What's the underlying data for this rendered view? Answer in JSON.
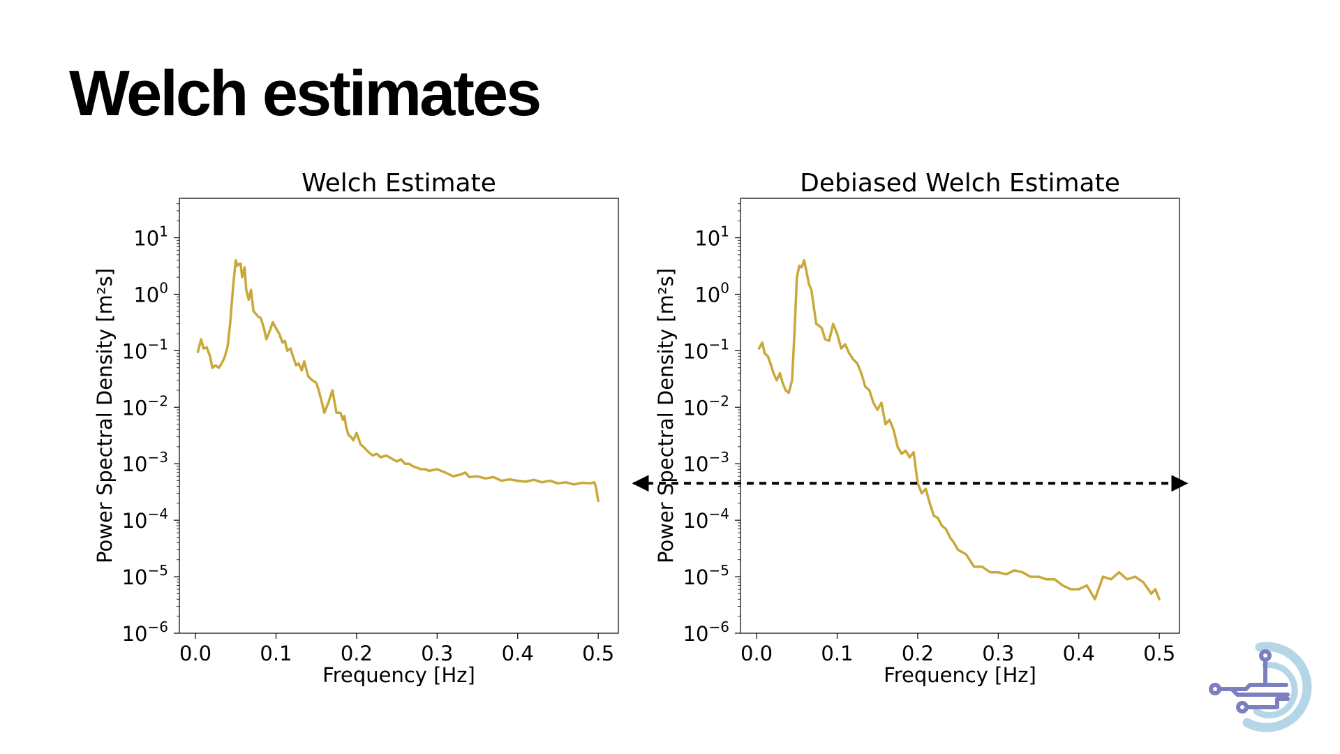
{
  "slide": {
    "title": "Welch estimates"
  },
  "colors": {
    "line": "#c9a83a",
    "threshold": "#000000",
    "axes": "#000000",
    "logo_blue": "#b4d6e6",
    "logo_purple": "#7b7fbf"
  },
  "logo": {
    "icon": "circuit-logo-icon"
  },
  "chart_data": [
    {
      "type": "line",
      "title": "Welch Estimate",
      "xlabel": "Frequency [Hz]",
      "ylabel": "Power Spectral Density [m²s]",
      "xlim": [
        -0.02,
        0.525
      ],
      "ylim": [
        1e-06,
        50
      ],
      "yscale": "log",
      "grid": false,
      "xticks": [
        "0.0",
        "0.1",
        "0.2",
        "0.3",
        "0.4",
        "0.5"
      ],
      "yticks": [
        {
          "base": "10",
          "exp": "1"
        },
        {
          "base": "10",
          "exp": "0"
        },
        {
          "base": "10",
          "exp": "−1"
        },
        {
          "base": "10",
          "exp": "−2"
        },
        {
          "base": "10",
          "exp": "−3"
        },
        {
          "base": "10",
          "exp": "−4"
        },
        {
          "base": "10",
          "exp": "−5"
        },
        {
          "base": "10",
          "exp": "−6"
        }
      ],
      "series": [
        {
          "x": [
            0.003,
            0.007,
            0.01,
            0.014,
            0.018,
            0.021,
            0.025,
            0.029,
            0.032,
            0.036,
            0.04,
            0.043,
            0.047,
            0.05,
            0.052,
            0.054,
            0.056,
            0.058,
            0.061,
            0.063,
            0.066,
            0.069,
            0.072,
            0.075,
            0.078,
            0.081,
            0.085,
            0.088,
            0.092,
            0.096,
            0.1,
            0.104,
            0.108,
            0.111,
            0.114,
            0.118,
            0.121,
            0.125,
            0.128,
            0.132,
            0.135,
            0.14,
            0.145,
            0.15,
            0.153,
            0.157,
            0.16,
            0.165,
            0.17,
            0.175,
            0.18,
            0.183,
            0.185,
            0.187,
            0.19,
            0.193,
            0.196,
            0.2,
            0.205,
            0.21,
            0.215,
            0.22,
            0.225,
            0.23,
            0.237,
            0.245,
            0.25,
            0.255,
            0.26,
            0.265,
            0.27,
            0.275,
            0.28,
            0.285,
            0.29,
            0.3,
            0.31,
            0.32,
            0.33,
            0.335,
            0.34,
            0.35,
            0.36,
            0.37,
            0.38,
            0.39,
            0.4,
            0.41,
            0.42,
            0.43,
            0.44,
            0.45,
            0.46,
            0.47,
            0.48,
            0.49,
            0.495,
            0.497,
            0.5
          ],
          "y": [
            0.095,
            0.16,
            0.11,
            0.115,
            0.08,
            0.05,
            0.055,
            0.05,
            0.058,
            0.075,
            0.12,
            0.3,
            1.5,
            4,
            3.2,
            3.4,
            3.5,
            2,
            3,
            1.2,
            0.8,
            1.2,
            0.5,
            0.45,
            0.4,
            0.38,
            0.25,
            0.16,
            0.22,
            0.32,
            0.25,
            0.2,
            0.14,
            0.15,
            0.1,
            0.11,
            0.08,
            0.055,
            0.06,
            0.045,
            0.065,
            0.035,
            0.03,
            0.027,
            0.02,
            0.012,
            0.008,
            0.012,
            0.02,
            0.008,
            0.008,
            0.006,
            0.007,
            0.0045,
            0.0032,
            0.003,
            0.0026,
            0.0035,
            0.0022,
            0.0019,
            0.0016,
            0.0014,
            0.0015,
            0.0013,
            0.0014,
            0.0012,
            0.0011,
            0.0012,
            0.001,
            0.001,
            0.0009,
            0.00085,
            0.0008,
            0.0008,
            0.00075,
            0.0008,
            0.0007,
            0.0006,
            0.00065,
            0.0007,
            0.00058,
            0.0006,
            0.00055,
            0.00058,
            0.0005,
            0.00053,
            0.0005,
            0.00048,
            0.00052,
            0.00047,
            0.0005,
            0.00045,
            0.00047,
            0.00043,
            0.00046,
            0.00045,
            0.00047,
            0.0004,
            0.00022
          ]
        }
      ]
    },
    {
      "type": "line",
      "title": "Debiased Welch Estimate",
      "xlabel": "Frequency [Hz]",
      "ylabel": "Power Spectral Density [m²s]",
      "xlim": [
        -0.02,
        0.525
      ],
      "ylim": [
        1e-06,
        50
      ],
      "yscale": "log",
      "grid": false,
      "xticks": [
        "0.0",
        "0.1",
        "0.2",
        "0.3",
        "0.4",
        "0.5"
      ],
      "yticks": [
        {
          "base": "10",
          "exp": "1"
        },
        {
          "base": "10",
          "exp": "0"
        },
        {
          "base": "10",
          "exp": "−1"
        },
        {
          "base": "10",
          "exp": "−2"
        },
        {
          "base": "10",
          "exp": "−3"
        },
        {
          "base": "10",
          "exp": "−4"
        },
        {
          "base": "10",
          "exp": "−5"
        },
        {
          "base": "10",
          "exp": "−6"
        }
      ],
      "threshold": {
        "value": 0.00045,
        "style": "dashed-arrow"
      },
      "series": [
        {
          "x": [
            0.003,
            0.007,
            0.01,
            0.014,
            0.018,
            0.021,
            0.025,
            0.029,
            0.032,
            0.036,
            0.04,
            0.044,
            0.047,
            0.05,
            0.053,
            0.056,
            0.059,
            0.062,
            0.065,
            0.068,
            0.071,
            0.074,
            0.077,
            0.081,
            0.085,
            0.09,
            0.095,
            0.1,
            0.105,
            0.11,
            0.115,
            0.12,
            0.125,
            0.13,
            0.135,
            0.14,
            0.145,
            0.15,
            0.155,
            0.16,
            0.165,
            0.17,
            0.175,
            0.18,
            0.185,
            0.19,
            0.195,
            0.2,
            0.205,
            0.21,
            0.215,
            0.22,
            0.225,
            0.23,
            0.235,
            0.24,
            0.245,
            0.25,
            0.26,
            0.27,
            0.28,
            0.29,
            0.3,
            0.31,
            0.32,
            0.33,
            0.34,
            0.35,
            0.36,
            0.37,
            0.38,
            0.39,
            0.4,
            0.41,
            0.42,
            0.43,
            0.44,
            0.45,
            0.46,
            0.47,
            0.48,
            0.49,
            0.495,
            0.5
          ],
          "y": [
            0.11,
            0.14,
            0.09,
            0.08,
            0.055,
            0.04,
            0.03,
            0.04,
            0.028,
            0.02,
            0.018,
            0.03,
            0.2,
            2,
            3.2,
            3,
            4,
            2.5,
            1.5,
            1.2,
            0.6,
            0.3,
            0.28,
            0.25,
            0.16,
            0.15,
            0.3,
            0.2,
            0.11,
            0.13,
            0.09,
            0.07,
            0.06,
            0.04,
            0.023,
            0.02,
            0.012,
            0.009,
            0.012,
            0.005,
            0.006,
            0.004,
            0.002,
            0.0015,
            0.0017,
            0.0013,
            0.0016,
            0.00045,
            0.0003,
            0.00036,
            0.0002,
            0.00012,
            0.00011,
            8e-05,
            7e-05,
            5e-05,
            4e-05,
            3e-05,
            2.5e-05,
            1.5e-05,
            1.5e-05,
            1.2e-05,
            1.2e-05,
            1.1e-05,
            1.3e-05,
            1.2e-05,
            1e-05,
            1e-05,
            9e-06,
            9e-06,
            7e-06,
            6e-06,
            6e-06,
            7e-06,
            4e-06,
            1e-05,
            9e-06,
            1.2e-05,
            9e-06,
            1e-05,
            8e-06,
            5e-06,
            6e-06,
            4e-06
          ]
        }
      ]
    }
  ]
}
